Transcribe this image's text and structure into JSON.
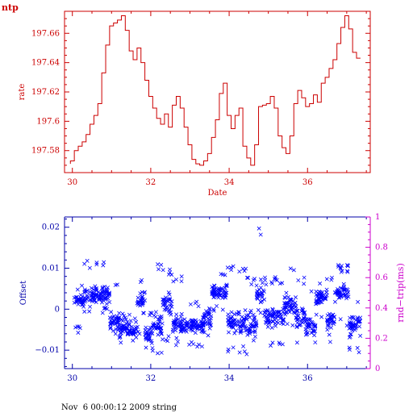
{
  "corner_label": "ntp",
  "footer": "Nov  6 00:00:12 2009 string",
  "colors": {
    "top": "#cc0000",
    "offset": "#0000ff",
    "offset_axis": "#0000aa",
    "rtt_axis": "#cc00cc"
  },
  "chart_data": [
    {
      "type": "line",
      "xlabel": "Date",
      "ylabel": "rate",
      "xlim": [
        29.8,
        37.6
      ],
      "ylim": [
        197.565,
        197.675
      ],
      "x_ticks": [
        "30",
        "32",
        "34",
        "36"
      ],
      "y_ticks": [
        "197.58",
        "197.6",
        "197.62",
        "197.64",
        "197.66"
      ],
      "x": [
        29.95,
        30.05,
        30.15,
        30.25,
        30.35,
        30.45,
        30.55,
        30.65,
        30.75,
        30.85,
        30.95,
        31.05,
        31.15,
        31.25,
        31.35,
        31.45,
        31.55,
        31.65,
        31.75,
        31.85,
        31.95,
        32.05,
        32.15,
        32.25,
        32.35,
        32.45,
        32.55,
        32.65,
        32.75,
        32.85,
        32.95,
        33.05,
        33.15,
        33.25,
        33.35,
        33.45,
        33.55,
        33.65,
        33.75,
        33.85,
        33.95,
        34.05,
        34.15,
        34.25,
        34.35,
        34.45,
        34.55,
        34.65,
        34.75,
        34.85,
        34.95,
        35.05,
        35.15,
        35.25,
        35.35,
        35.45,
        35.55,
        35.65,
        35.75,
        35.85,
        35.95,
        36.05,
        36.15,
        36.25,
        36.35,
        36.45,
        36.55,
        36.65,
        36.75,
        36.85,
        36.95,
        37.05,
        37.15,
        37.25,
        37.35
      ],
      "values": [
        197.571,
        197.573,
        197.58,
        197.583,
        197.586,
        197.591,
        197.598,
        197.604,
        197.612,
        197.633,
        197.652,
        197.665,
        197.667,
        197.669,
        197.672,
        197.662,
        197.648,
        197.642,
        197.65,
        197.64,
        197.628,
        197.617,
        197.609,
        197.602,
        197.598,
        197.605,
        197.596,
        197.611,
        197.617,
        197.609,
        197.596,
        197.584,
        197.574,
        197.571,
        197.57,
        197.573,
        197.578,
        197.589,
        197.601,
        197.619,
        197.626,
        197.604,
        197.595,
        197.604,
        197.609,
        197.583,
        197.575,
        197.57,
        197.584,
        197.61,
        197.611,
        197.612,
        197.617,
        197.609,
        197.59,
        197.582,
        197.578,
        197.59,
        197.612,
        197.621,
        197.616,
        197.61,
        197.612,
        197.618,
        197.613,
        197.626,
        197.63,
        197.636,
        197.642,
        197.653,
        197.664,
        197.672,
        197.663,
        197.647,
        197.643
      ]
    },
    {
      "type": "scatter",
      "xlabel": "",
      "ylabel": "Offset",
      "y2label": "rnd−trip(ms)",
      "xlim": [
        29.8,
        37.6
      ],
      "ylim": [
        -0.0145,
        0.0225
      ],
      "y2lim": [
        0,
        1
      ],
      "x_ticks": [
        "30",
        "32",
        "34",
        "36"
      ],
      "y_ticks": [
        "−0.01",
        "0",
        "0.01",
        "0.02"
      ],
      "y2_ticks": [
        "0",
        "0.2",
        "0.4",
        "0.6",
        "0.8",
        "1"
      ],
      "marker": "x",
      "clusters": [
        {
          "x": [
            30.05,
            30.3
          ],
          "center": 0.002,
          "spread": 0.003,
          "min": -0.006,
          "max": 0.006
        },
        {
          "x": [
            30.3,
            30.95
          ],
          "center": 0.0035,
          "spread": 0.003,
          "min": -0.001,
          "max": 0.012
        },
        {
          "x": [
            30.95,
            31.2
          ],
          "center": -0.003,
          "spread": 0.004,
          "min": -0.008,
          "max": 0.007
        },
        {
          "x": [
            31.2,
            31.65
          ],
          "center": -0.005,
          "spread": 0.003,
          "min": -0.009,
          "max": -0.001
        },
        {
          "x": [
            31.65,
            31.85
          ],
          "center": 0.002,
          "spread": 0.004,
          "min": -0.006,
          "max": 0.008
        },
        {
          "x": [
            31.85,
            32.05
          ],
          "center": -0.006,
          "spread": 0.003,
          "min": -0.01,
          "max": 0.0
        },
        {
          "x": [
            32.05,
            32.3
          ],
          "center": -0.004,
          "spread": 0.005,
          "min": -0.011,
          "max": 0.011
        },
        {
          "x": [
            32.3,
            32.55
          ],
          "center": 0.001,
          "spread": 0.005,
          "min": -0.008,
          "max": 0.01
        },
        {
          "x": [
            32.55,
            32.85
          ],
          "center": -0.004,
          "spread": 0.004,
          "min": -0.009,
          "max": 0.008
        },
        {
          "x": [
            32.85,
            33.35
          ],
          "center": -0.004,
          "spread": 0.003,
          "min": -0.01,
          "max": 0.002
        },
        {
          "x": [
            33.35,
            33.55
          ],
          "center": -0.002,
          "spread": 0.004,
          "min": -0.007,
          "max": 0.012
        },
        {
          "x": [
            33.55,
            33.95
          ],
          "center": 0.004,
          "spread": 0.003,
          "min": -0.001,
          "max": 0.009
        },
        {
          "x": [
            33.95,
            34.45
          ],
          "center": -0.003,
          "spread": 0.005,
          "min": -0.011,
          "max": 0.011
        },
        {
          "x": [
            34.45,
            34.7
          ],
          "center": -0.004,
          "spread": 0.005,
          "min": -0.011,
          "max": 0.008
        },
        {
          "x": [
            34.7,
            34.9
          ],
          "center": 0.004,
          "spread": 0.004,
          "min": -0.002,
          "max": 0.02
        },
        {
          "x": [
            34.9,
            35.4
          ],
          "center": -0.002,
          "spread": 0.004,
          "min": -0.01,
          "max": 0.008
        },
        {
          "x": [
            35.4,
            35.7
          ],
          "center": 0.001,
          "spread": 0.004,
          "min": -0.005,
          "max": 0.011
        },
        {
          "x": [
            35.7,
            35.95
          ],
          "center": -0.002,
          "spread": 0.005,
          "min": -0.01,
          "max": 0.008
        },
        {
          "x": [
            35.95,
            36.2
          ],
          "center": -0.004,
          "spread": 0.004,
          "min": -0.01,
          "max": 0.006
        },
        {
          "x": [
            36.2,
            36.5
          ],
          "center": 0.003,
          "spread": 0.003,
          "min": -0.003,
          "max": 0.008
        },
        {
          "x": [
            36.5,
            36.7
          ],
          "center": -0.003,
          "spread": 0.004,
          "min": -0.008,
          "max": 0.009
        },
        {
          "x": [
            36.7,
            37.05
          ],
          "center": 0.004,
          "spread": 0.003,
          "min": -0.004,
          "max": 0.011
        },
        {
          "x": [
            37.05,
            37.35
          ],
          "center": -0.004,
          "spread": 0.004,
          "min": -0.011,
          "max": 0.003
        }
      ]
    }
  ]
}
